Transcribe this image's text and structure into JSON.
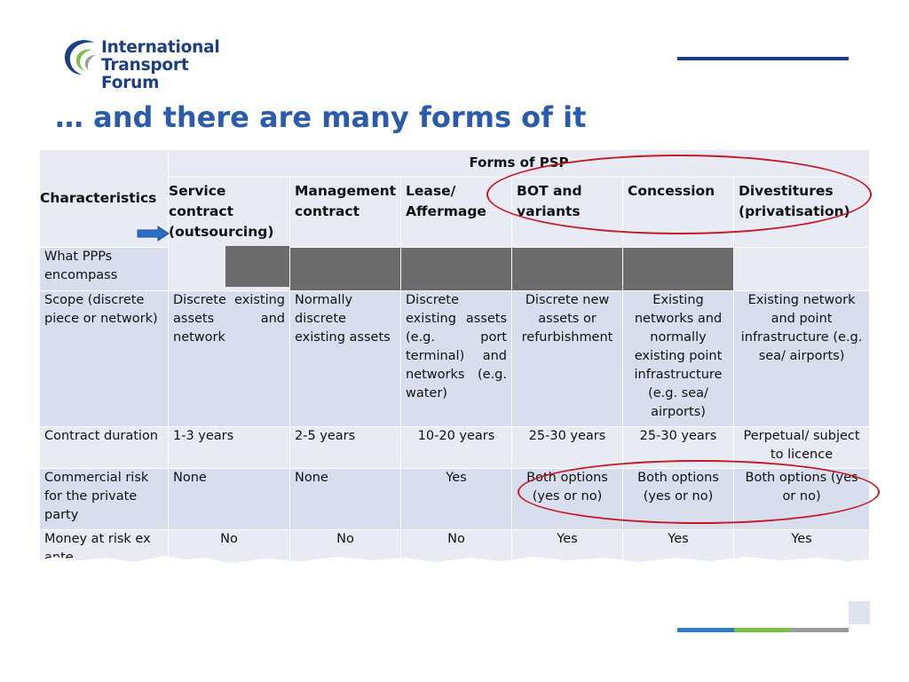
{
  "logo": {
    "line1": "International",
    "line2": "Transport Forum"
  },
  "title": "… and there are many forms of it",
  "table": {
    "characteristics_header": "Characteristics",
    "forms_header": "Forms of PSP",
    "columns": [
      "Service contract (outsourcing)",
      "Management contract",
      "Lease/ Affermage",
      "BOT and variants",
      "Concession",
      "Divestitures (privatisation)"
    ],
    "rows": {
      "ppp": {
        "label": "What PPPs encompass"
      },
      "scope": {
        "label": "Scope (discrete piece or network)",
        "cells": [
          "Discrete existing assets and network",
          "Normally discrete existing assets",
          "Discrete existing assets (e.g. port terminal) and networks (e.g. water)",
          "Discrete new assets or refurbishment",
          "Existing networks and normally existing point infrastructure (e.g. sea/ airports)",
          "Existing network and point infrastructure (e.g. sea/ airports)"
        ]
      },
      "duration": {
        "label": "Contract duration",
        "cells": [
          "1-3 years",
          "2-5 years",
          "10-20 years",
          "25-30 years",
          "25-30 years",
          "Perpetual/ subject to licence"
        ]
      },
      "risk": {
        "label": "Commercial risk for the private party",
        "cells": [
          "None",
          "None",
          "Yes",
          "Both options (yes or no)",
          "Both options (yes or no)",
          "Both options (yes or no)"
        ]
      },
      "money": {
        "label": "Money at risk ex ante",
        "cells": [
          "No",
          "No",
          "No",
          "Yes",
          "Yes",
          "Yes"
        ]
      }
    }
  },
  "colors": {
    "brand_blue": "#1b3f87",
    "title_blue": "#2a5bac",
    "annotation_red": "#c41a24",
    "arrow_blue": "#2b6fc2",
    "footer": [
      "#2f7bc8",
      "#7bbf45",
      "#9b9b9b"
    ]
  },
  "icons": [
    "itf-swoosh-logo-icon",
    "arrow-right-icon"
  ]
}
